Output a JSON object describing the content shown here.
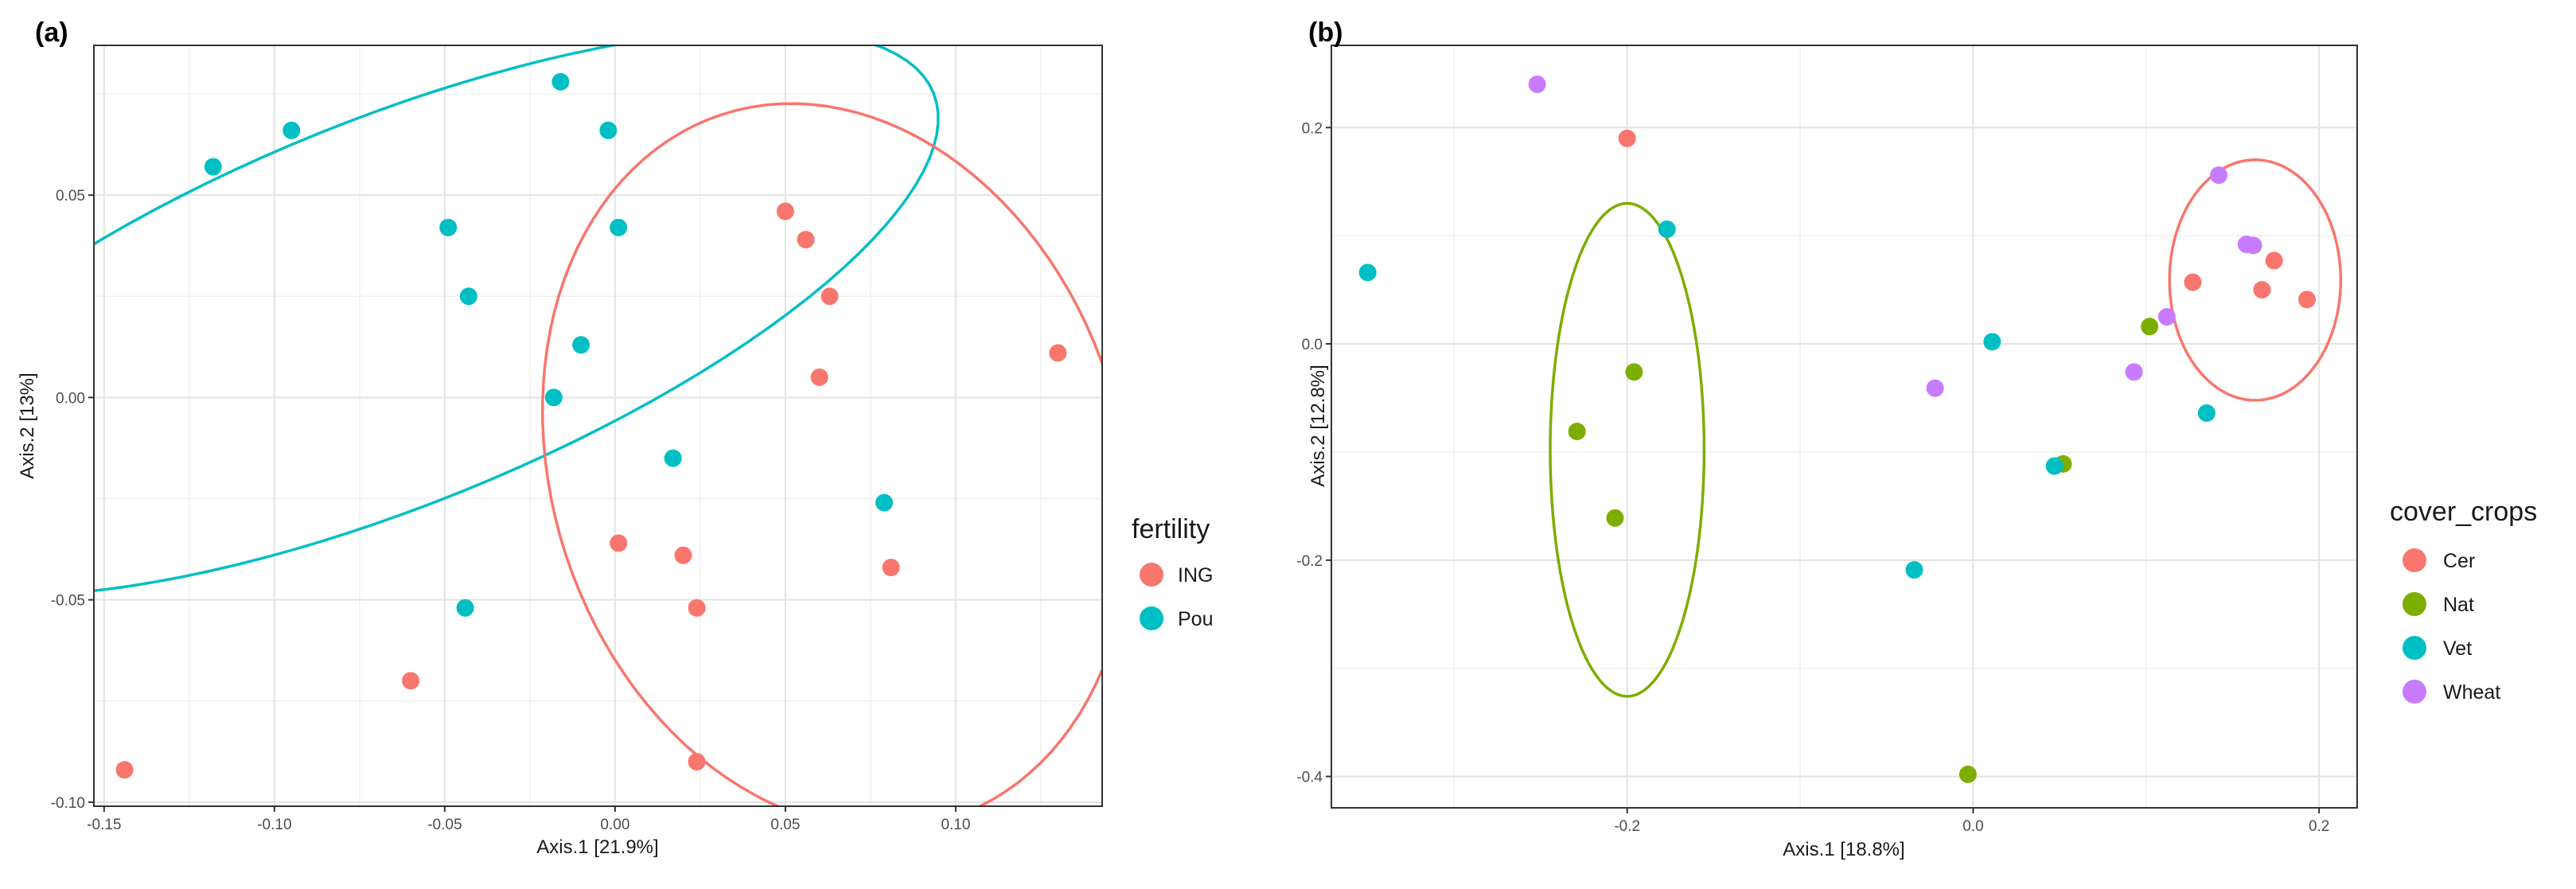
{
  "chart_data": [
    {
      "type": "scatter",
      "panel_label": "(a)",
      "xlabel": "Axis.1   [21.9%]",
      "ylabel": "Axis.2   [13%]",
      "xlim": [
        -0.153,
        0.143
      ],
      "ylim": [
        -0.101,
        0.087
      ],
      "xticks": [
        -0.15,
        -0.1,
        -0.05,
        0.0,
        0.05,
        0.1
      ],
      "xtick_labels": [
        "-0.15",
        "-0.10",
        "-0.05",
        "0.00",
        "0.05",
        "0.10"
      ],
      "yticks": [
        -0.1,
        -0.05,
        0.0,
        0.05
      ],
      "ytick_labels": [
        "-0.10",
        "-0.05",
        "0.00",
        "0.05"
      ],
      "grid": true,
      "legend_title": "fertility",
      "legend_position": "right",
      "series": [
        {
          "name": "ING",
          "color": "#F8766D",
          "points": [
            [
              0.05,
              0.046
            ],
            [
              0.056,
              0.039
            ],
            [
              0.063,
              0.025
            ],
            [
              0.06,
              0.005
            ],
            [
              0.13,
              0.011
            ],
            [
              0.001,
              -0.036
            ],
            [
              0.02,
              -0.039
            ],
            [
              0.024,
              -0.052
            ],
            [
              0.081,
              -0.042
            ],
            [
              -0.06,
              -0.07
            ],
            [
              0.024,
              -0.09
            ],
            [
              -0.144,
              -0.092
            ]
          ]
        },
        {
          "name": "Pou",
          "color": "#00BFC4",
          "points": [
            [
              -0.118,
              0.057
            ],
            [
              -0.095,
              0.066
            ],
            [
              -0.016,
              0.078
            ],
            [
              -0.002,
              0.066
            ],
            [
              -0.049,
              0.042
            ],
            [
              0.001,
              0.042
            ],
            [
              -0.043,
              0.025
            ],
            [
              -0.01,
              0.013
            ],
            [
              -0.018,
              0.0
            ],
            [
              0.017,
              -0.015
            ],
            [
              0.079,
              -0.026
            ],
            [
              -0.044,
              -0.052
            ]
          ]
        }
      ],
      "ellipses": [
        {
          "group": "Pou",
          "color": "#00BFC4",
          "center": [
            -0.066,
            0.021
          ],
          "radii": [
            0.172,
            0.0566
          ],
          "rotation_deg": 22
        },
        {
          "group": "ING",
          "color": "#F8766D",
          "center": [
            0.065,
            -0.017
          ],
          "radii": [
            0.1086,
            0.0836
          ],
          "rotation_deg": -72
        }
      ]
    },
    {
      "type": "scatter",
      "panel_label": "(b)",
      "xlabel": "Axis.1   [18.8%]",
      "ylabel": "Axis.2   [12.8%]",
      "xlim": [
        -0.371,
        0.222
      ],
      "ylim": [
        -0.429,
        0.276
      ],
      "xticks": [
        -0.2,
        0.0,
        0.2
      ],
      "xtick_labels": [
        "-0.2",
        "0.0",
        "0.2"
      ],
      "yticks": [
        -0.4,
        -0.2,
        0.0,
        0.2
      ],
      "ytick_labels": [
        "-0.4",
        "-0.2",
        "0.0",
        "0.2"
      ],
      "grid": true,
      "legend_title": "cover_crops",
      "legend_position": "right",
      "series": [
        {
          "name": "Cer",
          "color": "#F8766D",
          "points": [
            [
              -0.2,
              0.19
            ],
            [
              0.127,
              0.057
            ],
            [
              0.174,
              0.077
            ],
            [
              0.167,
              0.05
            ],
            [
              0.193,
              0.041
            ]
          ]
        },
        {
          "name": "Nat",
          "color": "#7CAE00",
          "points": [
            [
              -0.196,
              -0.026
            ],
            [
              -0.229,
              -0.081
            ],
            [
              -0.207,
              -0.161
            ],
            [
              0.102,
              0.016
            ],
            [
              0.052,
              -0.111
            ],
            [
              -0.003,
              -0.398
            ]
          ]
        },
        {
          "name": "Vet",
          "color": "#00BFC4",
          "points": [
            [
              -0.35,
              0.066
            ],
            [
              -0.177,
              0.106
            ],
            [
              0.011,
              0.002
            ],
            [
              0.047,
              -0.113
            ],
            [
              -0.034,
              -0.209
            ],
            [
              0.135,
              -0.064
            ]
          ]
        },
        {
          "name": "Wheat",
          "color": "#C77CFF",
          "points": [
            [
              -0.252,
              0.24
            ],
            [
              0.142,
              0.156
            ],
            [
              0.158,
              0.092
            ],
            [
              0.162,
              0.091
            ],
            [
              0.112,
              0.025
            ],
            [
              0.093,
              -0.026
            ],
            [
              -0.022,
              -0.041
            ]
          ]
        }
      ],
      "ellipses": [
        {
          "group": "Cer",
          "color": "#F8766D",
          "center": [
            0.163,
            0.059
          ],
          "radii": [
            0.0495,
            0.0695
          ],
          "rotation_deg": 0
        },
        {
          "group": "Nat",
          "color": "#7CAE00",
          "center": [
            -0.2,
            -0.098
          ],
          "radii": [
            0.0445,
            0.1425
          ],
          "rotation_deg": 0
        }
      ]
    }
  ]
}
